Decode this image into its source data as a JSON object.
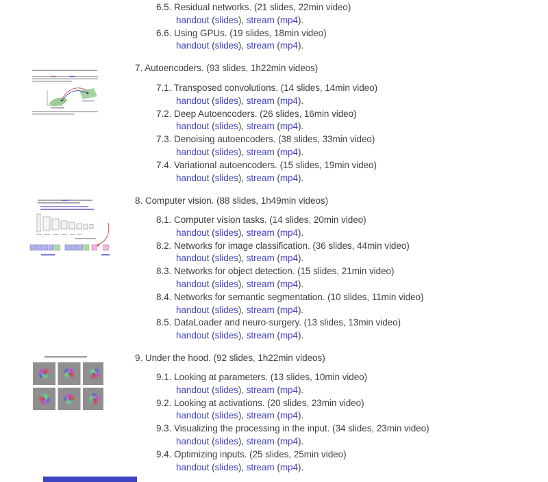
{
  "links": {
    "handout": "handout",
    "slides": "slides",
    "stream": "stream",
    "mp4": "mp4",
    "p1": " (",
    "p2": "), ",
    "p3": " (",
    "p4": ")."
  },
  "sections": [
    {
      "id": "6",
      "heading_num": null,
      "heading": null,
      "heading_meta": null,
      "subsections": [
        {
          "num": "6.5.",
          "title": "Residual networks.",
          "meta": "(21 slides, 22min video)"
        },
        {
          "num": "6.6.",
          "title": "Using GPUs.",
          "meta": "(19 slides, 18min video)"
        }
      ]
    },
    {
      "id": "7",
      "heading_num": "7.",
      "heading": "Autoencoders.",
      "heading_meta": "(93 slides, 1h22min videos)",
      "subsections": [
        {
          "num": "7.1.",
          "title": "Transposed convolutions.",
          "meta": "(14 slides, 14min video)"
        },
        {
          "num": "7.2.",
          "title": "Deep Autoencoders.",
          "meta": "(26 slides, 16min video)"
        },
        {
          "num": "7.3.",
          "title": "Denoising autoencoders.",
          "meta": "(38 slides, 33min video)"
        },
        {
          "num": "7.4.",
          "title": "Variational autoencoders.",
          "meta": "(15 slides, 19min video)"
        }
      ]
    },
    {
      "id": "8",
      "heading_num": "8.",
      "heading": "Computer vision.",
      "heading_meta": "(88 slides, 1h49min videos)",
      "subsections": [
        {
          "num": "8.1.",
          "title": "Computer vision tasks.",
          "meta": "(14 slides, 20min video)"
        },
        {
          "num": "8.2.",
          "title": "Networks for image classification.",
          "meta": "(36 slides, 44min video)"
        },
        {
          "num": "8.3.",
          "title": "Networks for object detection.",
          "meta": "(15 slides, 21min video)"
        },
        {
          "num": "8.4.",
          "title": "Networks for semantic segmentation.",
          "meta": "(10 slides, 11min video)"
        },
        {
          "num": "8.5.",
          "title": "DataLoader and neuro-surgery.",
          "meta": "(13 slides, 13min video)"
        }
      ]
    },
    {
      "id": "9",
      "heading_num": "9.",
      "heading": "Under the hood.",
      "heading_meta": "(92 slides, 1h22min videos)",
      "subsections": [
        {
          "num": "9.1.",
          "title": "Looking at parameters.",
          "meta": "(13 slides, 10min video)"
        },
        {
          "num": "9.2.",
          "title": "Looking at activations.",
          "meta": "(20 slides, 23min video)"
        },
        {
          "num": "9.3.",
          "title": "Visualizing the processing in the input.",
          "meta": "(34 slides, 23min video)"
        },
        {
          "num": "9.4.",
          "title": "Optimizing inputs.",
          "meta": "(25 slides, 25min video)"
        }
      ]
    }
  ],
  "figures": [
    {
      "id": "autoencoder-latent-space-slide-thumbnail"
    },
    {
      "id": "cnn-architecture-slide-thumbnail"
    },
    {
      "id": "feature-visualization-slide-thumbnail"
    }
  ],
  "colors": {
    "text": "#3f3f44",
    "link_blue": "#4141c6",
    "bottom_bar": "#3d45c3",
    "thumb_gray_cell": "#8f8f8f"
  }
}
